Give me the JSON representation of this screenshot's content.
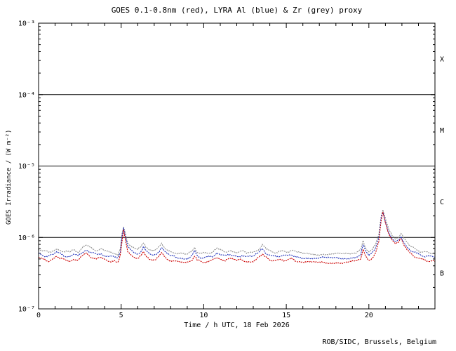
{
  "chart_data": {
    "type": "line",
    "title": "GOES 0.1-0.8nm (red), LYRA Al (blue) & Zr (grey) proxy",
    "xlabel": "Time / h UTC, 18 Feb 2026",
    "ylabel": "GOES Irradiance / (W m⁻²)",
    "footer": "ROB/SIDC, Brussels, Belgium",
    "grid": false,
    "legend": "in-title",
    "x_range": [
      0,
      24
    ],
    "ylim": [
      1e-07,
      0.001
    ],
    "y_scale": "log",
    "x_major_ticks": [
      0,
      5,
      10,
      15,
      20
    ],
    "x_minor_step": 1,
    "y_tick_labels": [
      "10⁻³",
      "10⁻⁴",
      "10⁻⁵",
      "10⁻⁶",
      "10⁻⁷"
    ],
    "y_tick_exponents": [
      -3,
      -4,
      -5,
      -6,
      -7
    ],
    "class_boundary_exponents": [
      -4,
      -5,
      -6
    ],
    "flare_class_labels": [
      "X",
      "M",
      "C",
      "B"
    ],
    "flare_class_mid_exponents": [
      -3.5,
      -4.5,
      -5.5,
      -6.5
    ],
    "unit_scale": 1e-07,
    "x": [
      0,
      0.3,
      0.6,
      0.9,
      1.1,
      1.3,
      1.6,
      1.9,
      2.1,
      2.4,
      2.7,
      2.9,
      3.2,
      3.5,
      3.8,
      4.0,
      4.3,
      4.6,
      4.8,
      4.95,
      5.05,
      5.15,
      5.25,
      5.4,
      5.6,
      5.8,
      6.0,
      6.2,
      6.35,
      6.5,
      6.7,
      6.9,
      7.1,
      7.3,
      7.45,
      7.6,
      7.8,
      8.0,
      8.3,
      8.6,
      9.0,
      9.3,
      9.45,
      9.6,
      9.9,
      10.2,
      10.5,
      10.8,
      11.0,
      11.3,
      11.6,
      12.0,
      12.3,
      12.6,
      13.0,
      13.3,
      13.55,
      13.8,
      14.1,
      14.4,
      14.7,
      15.0,
      15.3,
      15.6,
      16.0,
      16.4,
      16.8,
      17.2,
      17.6,
      18.0,
      18.4,
      18.8,
      19.2,
      19.5,
      19.65,
      19.8,
      20.0,
      20.2,
      20.4,
      20.6,
      20.75,
      20.85,
      21.0,
      21.2,
      21.4,
      21.6,
      21.8,
      21.95,
      22.1,
      22.3,
      22.5,
      22.8,
      23.1,
      23.4,
      23.7,
      24.0
    ],
    "series": [
      {
        "name": "GOES 0.1-0.8nm",
        "color": "#cc0000",
        "values": [
          5.2,
          4.9,
          4.7,
          5.0,
          5.4,
          5.1,
          4.8,
          4.7,
          5.0,
          4.8,
          5.6,
          5.9,
          5.3,
          5.0,
          5.2,
          4.9,
          4.7,
          4.6,
          4.4,
          5.5,
          9.0,
          12.5,
          9.5,
          6.5,
          5.8,
          5.3,
          5.1,
          5.6,
          6.5,
          5.6,
          5.1,
          4.9,
          5.0,
          5.6,
          6.3,
          5.6,
          5.0,
          4.8,
          4.6,
          4.5,
          4.4,
          4.9,
          5.6,
          4.8,
          4.5,
          4.6,
          4.7,
          5.3,
          5.0,
          4.8,
          5.0,
          4.7,
          4.9,
          4.6,
          4.7,
          5.2,
          6.0,
          5.2,
          4.8,
          4.7,
          4.9,
          4.8,
          5.0,
          4.7,
          4.5,
          4.5,
          4.4,
          4.5,
          4.4,
          4.5,
          4.4,
          4.5,
          4.6,
          5.0,
          7.0,
          5.5,
          4.8,
          5.2,
          6.2,
          9.0,
          18.0,
          22.0,
          16.0,
          11.0,
          9.0,
          8.0,
          8.5,
          9.5,
          8.0,
          6.8,
          6.0,
          5.4,
          5.0,
          4.8,
          4.7,
          4.6
        ]
      },
      {
        "name": "LYRA Al proxy",
        "color": "#2233bb",
        "values": [
          6.0,
          5.6,
          5.4,
          5.8,
          6.2,
          5.9,
          5.5,
          5.4,
          5.8,
          5.5,
          6.4,
          6.8,
          6.1,
          5.8,
          6.0,
          5.6,
          5.4,
          5.3,
          5.1,
          6.3,
          10.2,
          13.6,
          10.5,
          7.4,
          6.6,
          6.1,
          5.9,
          6.4,
          7.4,
          6.4,
          5.9,
          5.6,
          5.8,
          6.4,
          7.2,
          6.4,
          5.8,
          5.5,
          5.3,
          5.2,
          5.1,
          5.6,
          6.4,
          5.5,
          5.2,
          5.3,
          5.4,
          6.1,
          5.8,
          5.5,
          5.8,
          5.4,
          5.6,
          5.3,
          5.4,
          6.0,
          6.9,
          6.0,
          5.5,
          5.4,
          5.6,
          5.5,
          5.8,
          5.4,
          5.2,
          5.2,
          5.1,
          5.2,
          5.1,
          5.2,
          5.1,
          5.2,
          5.3,
          5.8,
          7.9,
          6.3,
          5.5,
          6.0,
          7.0,
          9.9,
          19.0,
          23.2,
          17.0,
          11.9,
          9.8,
          8.8,
          9.3,
          10.4,
          8.8,
          7.6,
          6.7,
          6.1,
          5.7,
          5.5,
          5.4,
          5.3
        ]
      },
      {
        "name": "LYRA Zr proxy",
        "color": "#8f8f8f",
        "values": [
          6.9,
          6.5,
          6.2,
          6.6,
          7.1,
          6.7,
          6.3,
          6.2,
          6.6,
          6.3,
          7.4,
          7.8,
          7.0,
          6.6,
          6.9,
          6.5,
          6.2,
          6.1,
          5.8,
          7.1,
          11.0,
          14.5,
          11.3,
          8.2,
          7.4,
          6.9,
          6.7,
          7.3,
          8.3,
          7.3,
          6.7,
          6.4,
          6.6,
          7.3,
          8.1,
          7.3,
          6.6,
          6.3,
          6.1,
          5.9,
          5.8,
          6.4,
          7.3,
          6.3,
          5.9,
          6.1,
          6.2,
          6.9,
          6.6,
          6.3,
          6.6,
          6.2,
          6.4,
          6.1,
          6.2,
          6.8,
          7.8,
          6.8,
          6.3,
          6.2,
          6.4,
          6.3,
          6.6,
          6.2,
          5.9,
          5.9,
          5.8,
          5.9,
          5.8,
          5.9,
          5.8,
          5.9,
          6.1,
          6.6,
          8.9,
          7.2,
          6.3,
          6.8,
          7.9,
          10.9,
          20.5,
          24.5,
          18.0,
          13.0,
          10.8,
          9.7,
          10.2,
          11.4,
          9.7,
          8.5,
          7.5,
          6.9,
          6.4,
          6.2,
          6.1,
          6.0
        ]
      }
    ]
  }
}
